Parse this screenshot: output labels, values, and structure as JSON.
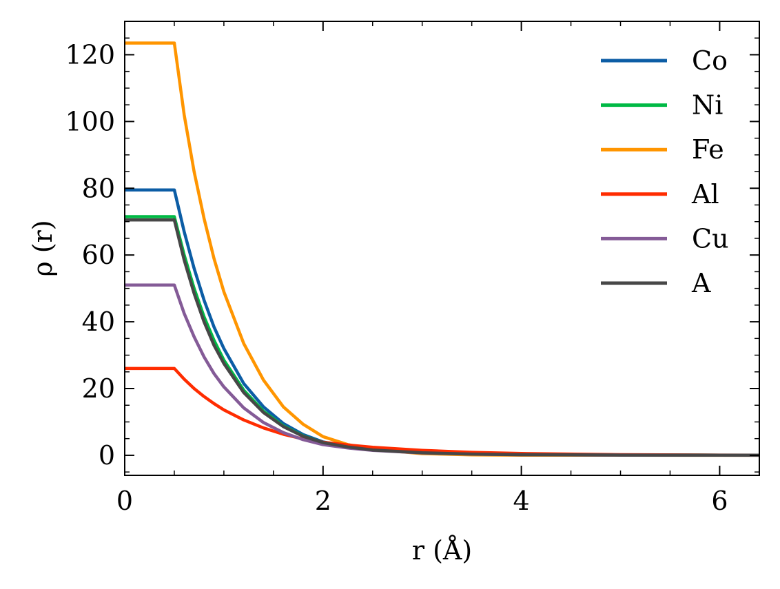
{
  "chart_data": {
    "type": "line",
    "title": "",
    "xlabel": "r (Å)",
    "ylabel": "ρ (r)",
    "xlim": [
      0,
      6.4
    ],
    "ylim": [
      -6,
      130
    ],
    "x_ticks": [
      0,
      2,
      4,
      6
    ],
    "x_tick_labels": [
      "0",
      "2",
      "4",
      "6"
    ],
    "y_ticks": [
      0,
      20,
      40,
      60,
      80,
      100,
      120
    ],
    "y_tick_labels": [
      "0",
      "20",
      "40",
      "60",
      "80",
      "100",
      "120"
    ],
    "grid": false,
    "legend_position": "top-right",
    "x": [
      0,
      0.5,
      0.6,
      0.7,
      0.8,
      0.9,
      1.0,
      1.2,
      1.4,
      1.6,
      1.8,
      2.0,
      2.25,
      2.5,
      3.0,
      3.5,
      4.0,
      5.0,
      6.0,
      6.4
    ],
    "series": [
      {
        "name": "Co",
        "color": "#0C5DA5",
        "values": [
          79.5,
          79.5,
          67,
          56,
          46.5,
          38.5,
          32,
          21.5,
          14.5,
          9.5,
          6.2,
          4.0,
          2.6,
          1.7,
          0.8,
          0.4,
          0.2,
          0.08,
          0.04,
          0.03
        ]
      },
      {
        "name": "Ni",
        "color": "#00B945",
        "values": [
          71.5,
          71.5,
          60,
          50,
          41.5,
          34.5,
          28.5,
          19.5,
          13.2,
          8.8,
          5.8,
          3.8,
          2.5,
          1.65,
          0.8,
          0.4,
          0.2,
          0.08,
          0.04,
          0.03
        ]
      },
      {
        "name": "Fe",
        "color": "#FF9500",
        "values": [
          123.5,
          123.5,
          102,
          85,
          71,
          59,
          49,
          33.5,
          22.5,
          14.5,
          9.3,
          5.6,
          3.2,
          1.8,
          0.5,
          0.15,
          0.05,
          0.02,
          0.01,
          0.0
        ]
      },
      {
        "name": "Al",
        "color": "#FF2C00",
        "values": [
          26,
          26,
          22.8,
          20,
          17.6,
          15.5,
          13.6,
          10.6,
          8.2,
          6.3,
          4.9,
          3.9,
          3.1,
          2.4,
          1.5,
          0.9,
          0.55,
          0.2,
          0.07,
          0.05
        ]
      },
      {
        "name": "Cu",
        "color": "#845B97",
        "values": [
          51,
          51,
          42.5,
          35.5,
          29.5,
          24.5,
          20.5,
          14.2,
          9.8,
          6.8,
          4.7,
          3.2,
          2.2,
          1.5,
          0.7,
          0.35,
          0.18,
          0.06,
          0.02,
          0.01
        ]
      },
      {
        "name": "A",
        "color": "#474747",
        "values": [
          70.5,
          70.5,
          58.5,
          48.5,
          40,
          33,
          27.5,
          18.8,
          12.8,
          8.6,
          5.7,
          3.8,
          2.5,
          1.6,
          0.75,
          0.38,
          0.19,
          0.07,
          0.03,
          0.02
        ]
      }
    ]
  }
}
